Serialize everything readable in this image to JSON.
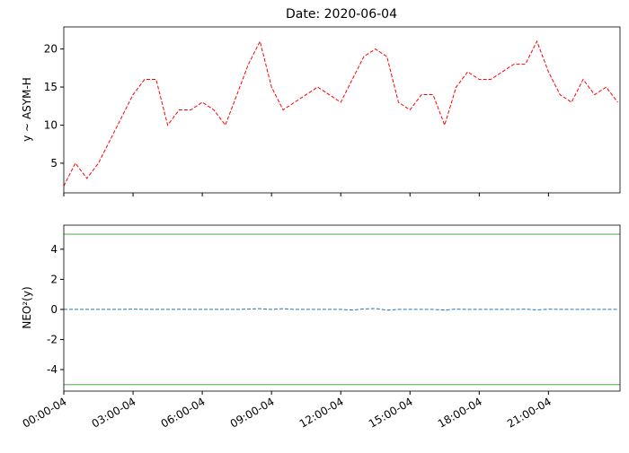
{
  "chart_data": [
    {
      "type": "line",
      "title": "Date: 2020-06-04",
      "y_label": "y ∼ ASYM-H",
      "x": [
        0,
        0.5,
        1,
        1.5,
        2,
        2.5,
        3,
        3.5,
        4,
        4.5,
        5,
        5.5,
        6,
        6.5,
        7,
        7.5,
        8,
        8.5,
        9,
        9.5,
        10,
        10.5,
        11,
        11.5,
        12,
        12.5,
        13,
        13.5,
        14,
        14.5,
        15,
        15.5,
        16,
        16.5,
        17,
        17.5,
        18,
        18.5,
        19,
        19.5,
        20,
        20.5,
        21,
        21.5,
        22,
        22.5,
        23,
        23.5,
        24
      ],
      "series": [
        {
          "color": "#ff0000",
          "values": [
            2,
            5,
            3,
            5,
            8,
            11,
            14,
            16,
            16,
            10,
            12,
            12,
            13,
            12,
            10,
            14,
            18,
            21,
            15,
            12,
            13,
            14,
            15,
            14,
            13,
            16,
            19,
            20,
            19,
            13,
            12,
            14,
            14,
            10,
            15,
            17,
            16,
            16,
            17,
            18,
            18,
            21,
            17,
            14,
            13,
            16,
            14,
            15,
            13
          ]
        }
      ],
      "xlim": [
        0,
        24.1
      ],
      "ylim": [
        1.1,
        22.9
      ],
      "yticks": [
        5,
        10,
        15,
        20
      ]
    },
    {
      "type": "line",
      "y_label": "NEO²(y)",
      "x": [
        0,
        0.5,
        1,
        1.5,
        2,
        2.5,
        3,
        3.5,
        4,
        4.5,
        5,
        5.5,
        6,
        6.5,
        7,
        7.5,
        8,
        8.5,
        9,
        9.5,
        10,
        10.5,
        11,
        11.5,
        12,
        12.5,
        13,
        13.5,
        14,
        14.5,
        15,
        15.5,
        16,
        16.5,
        17,
        17.5,
        18,
        18.5,
        19,
        19.5,
        20,
        20.5,
        21,
        21.5,
        22,
        22.5,
        23,
        23.5,
        24
      ],
      "series": [
        {
          "color": "#1f77b4",
          "values": [
            0,
            0,
            0,
            0,
            0,
            0,
            0.02,
            0,
            0,
            0,
            0.01,
            0,
            0,
            0,
            0,
            0,
            0.02,
            0.05,
            0,
            0.05,
            0,
            0,
            0,
            0,
            0,
            -0.04,
            0.03,
            0.06,
            -0.05,
            0,
            0,
            0,
            0,
            -0.04,
            0.02,
            0,
            0,
            0,
            0,
            0,
            0.02,
            -0.03,
            0.02,
            0,
            0,
            0,
            0,
            0,
            0
          ]
        }
      ],
      "hlines": [
        5,
        -5
      ],
      "hline_color": "#2ca02c",
      "xlim": [
        0,
        24.1
      ],
      "ylim": [
        -5.43,
        5.6
      ],
      "yticks": [
        -4,
        -2,
        0,
        2,
        4
      ],
      "xticks": [
        {
          "value": 0,
          "label": "00:00-04"
        },
        {
          "value": 3,
          "label": "03:00-04"
        },
        {
          "value": 6,
          "label": "06:00-04"
        },
        {
          "value": 9,
          "label": "09:00-04"
        },
        {
          "value": 12,
          "label": "12:00-04"
        },
        {
          "value": 15,
          "label": "15:00-04"
        },
        {
          "value": 18,
          "label": "18:00-04"
        },
        {
          "value": 21,
          "label": "21:00-04"
        }
      ]
    }
  ]
}
